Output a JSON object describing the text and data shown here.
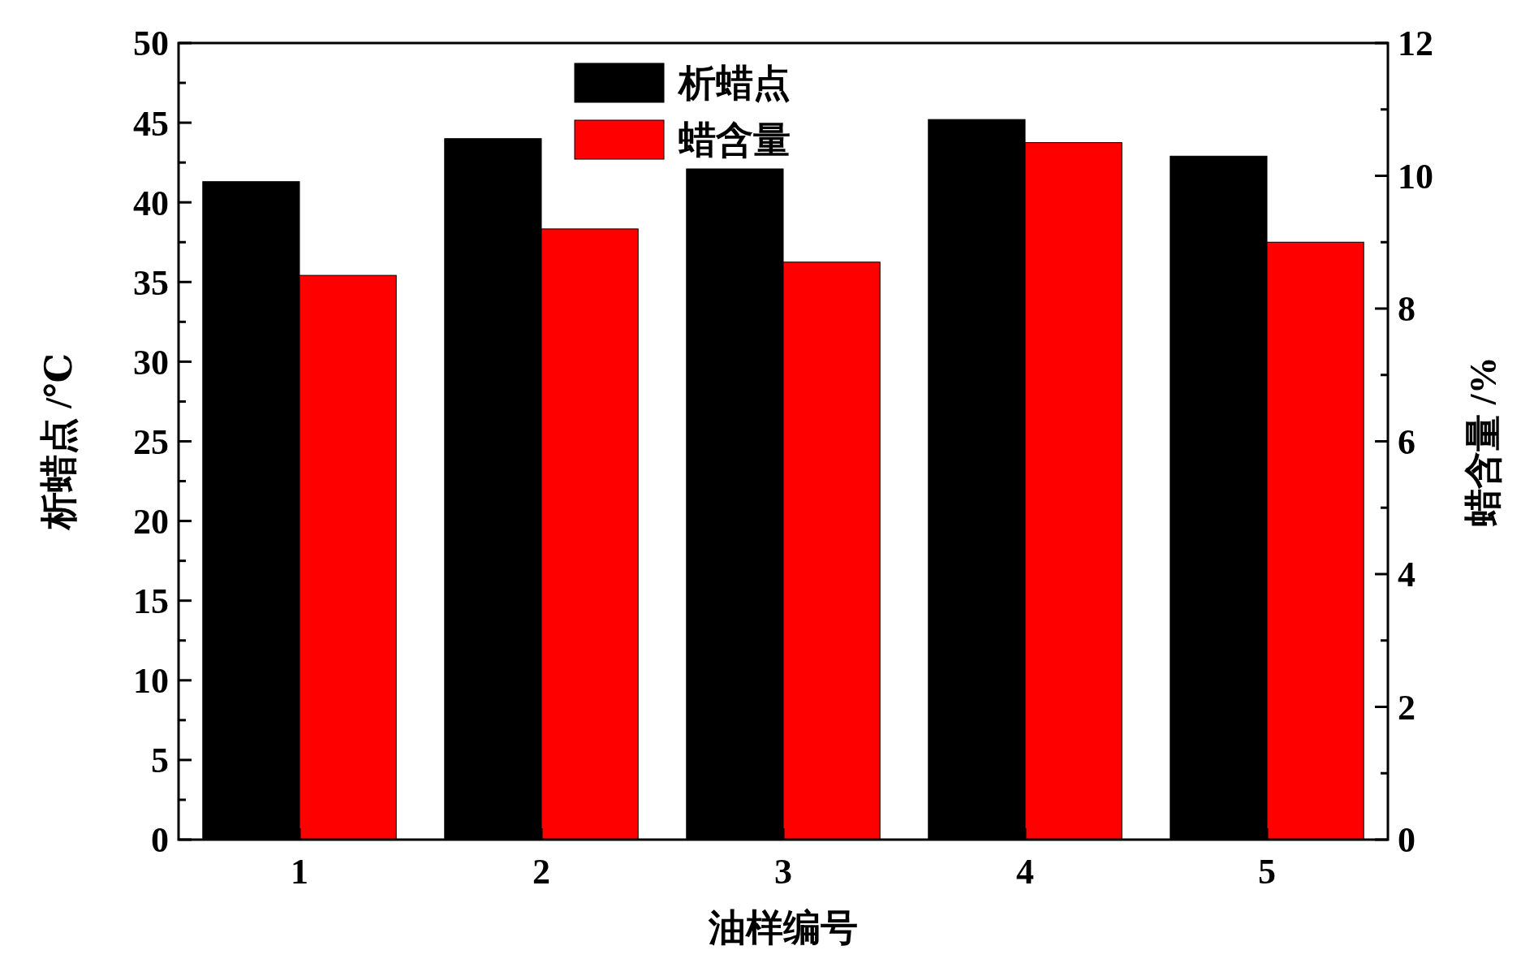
{
  "chart_data": {
    "type": "bar",
    "xlabel": "油样编号",
    "ylabel": "析蜡点 /℃",
    "y2label": "蜡含量 /%",
    "categories": [
      "1",
      "2",
      "3",
      "4",
      "5"
    ],
    "series": [
      {
        "name": "析蜡点",
        "color": "#000000",
        "values": [
          41.3,
          44.0,
          42.1,
          45.2,
          42.9
        ]
      },
      {
        "name": "蜡含量",
        "color": "#ff0000",
        "values": [
          8.5,
          9.2,
          8.7,
          10.5,
          9.0
        ],
        "axis": "y2"
      }
    ],
    "ylim": [
      0,
      50
    ],
    "yticks": [
      0,
      {
        "value": 2.5,
        "label": null
      },
      5,
      {
        "value": 7.5,
        "label": null
      },
      10,
      {
        "value": 12.5,
        "label": null
      },
      15,
      {
        "value": 17.5,
        "label": null
      },
      20,
      {
        "value": 22.5,
        "label": null
      },
      25,
      {
        "value": 27.5,
        "label": null
      },
      30,
      {
        "value": 32.5,
        "label": null
      },
      35,
      {
        "value": 37.5,
        "label": null
      },
      40,
      {
        "value": 42.5,
        "label": null
      },
      45,
      {
        "value": 47.5,
        "label": null
      },
      50
    ],
    "y2lim": [
      0,
      12
    ],
    "y2ticks": [
      0,
      {
        "value": 1,
        "label": null
      },
      2,
      {
        "value": 3,
        "label": null
      },
      4,
      {
        "value": 5,
        "label": null
      },
      6,
      {
        "value": 7,
        "label": null
      },
      8,
      {
        "value": 9,
        "label": null
      },
      10,
      {
        "value": 11,
        "label": null
      },
      12
    ],
    "legend": "top",
    "grid": false
  }
}
